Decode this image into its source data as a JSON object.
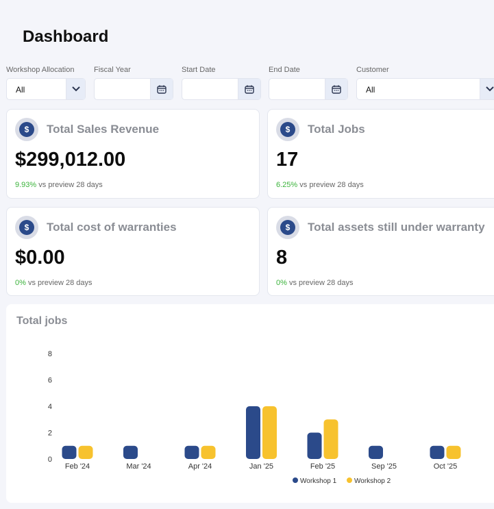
{
  "page": {
    "title": "Dashboard"
  },
  "filters": {
    "workshop_allocation": {
      "label": "Workshop Allocation",
      "value": "All"
    },
    "fiscal_year": {
      "label": "Fiscal Year",
      "value": ""
    },
    "start_date": {
      "label": "Start Date",
      "value": ""
    },
    "end_date": {
      "label": "End Date",
      "value": ""
    },
    "customer": {
      "label": "Customer",
      "value": "All"
    }
  },
  "cards": [
    {
      "title": "Total Sales Revenue",
      "value": "$299,012.00",
      "pct": "9.93%",
      "foot": " vs preview 28 days"
    },
    {
      "title": "Total Jobs",
      "value": "17",
      "pct": "6.25%",
      "foot": " vs preview 28 days"
    },
    {
      "title": "Total cost of warranties",
      "value": "$0.00",
      "pct": "0%",
      "foot": " vs preview 28 days"
    },
    {
      "title": "Total assets still under warranty",
      "value": "8",
      "pct": "0%",
      "foot": " vs preview 28 days"
    }
  ],
  "colors": {
    "workshop1": "#2b4a8a",
    "workshop2": "#f7c22e",
    "positive": "#3bb33b"
  },
  "chart_data": {
    "type": "bar",
    "title": "Total jobs",
    "categories": [
      "Feb '24",
      "Mar '24",
      "Apr '24",
      "Jan '25",
      "Feb '25",
      "Sep '25",
      "Oct '25"
    ],
    "series": [
      {
        "name": "Workshop 1",
        "values": [
          1,
          1,
          1,
          4,
          2,
          1,
          1
        ]
      },
      {
        "name": "Workshop 2",
        "values": [
          1,
          0,
          1,
          4,
          3,
          0,
          1
        ]
      }
    ],
    "yticks": [
      "0",
      "2",
      "4",
      "6",
      "8"
    ],
    "ylim": [
      0,
      8
    ],
    "legend": "bottom-center"
  }
}
